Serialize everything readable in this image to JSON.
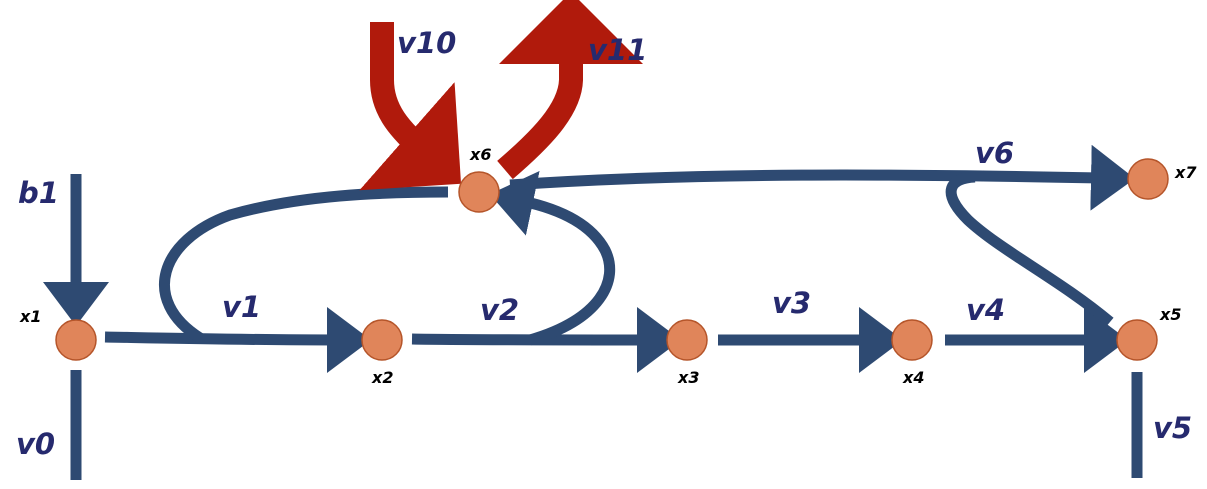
{
  "colors": {
    "flow": "#2e4a72",
    "highlight_flow": "#b01a0c",
    "node_fill": "#e0855a",
    "node_stroke": "#b5552a",
    "flow_label": "#262a6e",
    "node_label": "#000000"
  },
  "nodes": [
    {
      "id": "x1",
      "label": "x1"
    },
    {
      "id": "x2",
      "label": "x2"
    },
    {
      "id": "x3",
      "label": "x3"
    },
    {
      "id": "x4",
      "label": "x4"
    },
    {
      "id": "x5",
      "label": "x5"
    },
    {
      "id": "x6",
      "label": "x6"
    },
    {
      "id": "x7",
      "label": "x7"
    }
  ],
  "flows": [
    {
      "id": "b1",
      "label": "b1",
      "style": "normal"
    },
    {
      "id": "v0",
      "label": "v0",
      "style": "normal"
    },
    {
      "id": "v1",
      "label": "v1",
      "style": "normal"
    },
    {
      "id": "v2",
      "label": "v2",
      "style": "normal"
    },
    {
      "id": "v3",
      "label": "v3",
      "style": "normal"
    },
    {
      "id": "v4",
      "label": "v4",
      "style": "normal"
    },
    {
      "id": "v5",
      "label": "v5",
      "style": "normal"
    },
    {
      "id": "v6",
      "label": "v6",
      "style": "normal"
    },
    {
      "id": "v10",
      "label": "v10",
      "style": "highlight"
    },
    {
      "id": "v11",
      "label": "v11",
      "style": "highlight"
    }
  ]
}
